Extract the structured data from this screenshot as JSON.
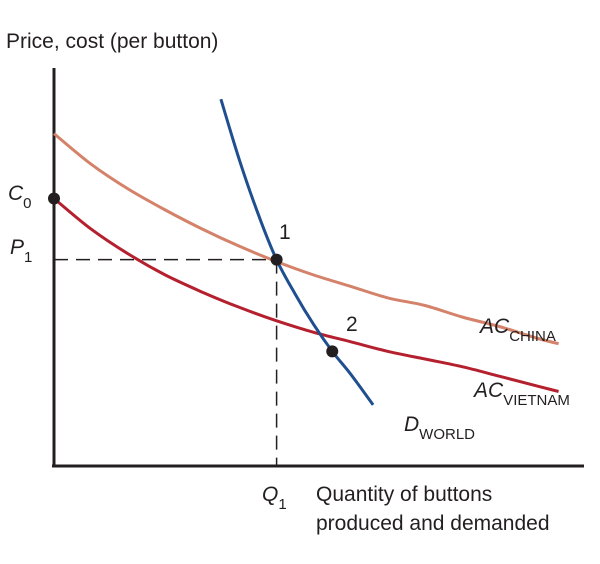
{
  "chart_data": {
    "type": "line",
    "title": "",
    "ylabel": "Price, cost (per button)",
    "xlabel_line1": "Quantity of buttons",
    "xlabel_line2": "produced and demanded",
    "series": [
      {
        "name": "AC_CHINA",
        "label_main": "AC",
        "label_sub": "CHINA",
        "color": "#d4826a",
        "points": [
          [
            0.0,
            0.87
          ],
          [
            0.1,
            0.79
          ],
          [
            0.2,
            0.725
          ],
          [
            0.3,
            0.67
          ],
          [
            0.4,
            0.62
          ],
          [
            0.5,
            0.575
          ],
          [
            0.6,
            0.535
          ],
          [
            0.7,
            0.5
          ],
          [
            0.8,
            0.47
          ],
          [
            0.9,
            0.44
          ],
          [
            1.0,
            0.42
          ],
          [
            1.1,
            0.39
          ],
          [
            1.2,
            0.365
          ],
          [
            1.3,
            0.335
          ],
          [
            1.36,
            0.32
          ]
        ]
      },
      {
        "name": "AC_VIETNAM",
        "label_main": "AC",
        "label_sub": "VIETNAM",
        "color": "#b5202e",
        "points": [
          [
            0.0,
            0.7
          ],
          [
            0.1,
            0.62
          ],
          [
            0.2,
            0.555
          ],
          [
            0.3,
            0.5
          ],
          [
            0.4,
            0.455
          ],
          [
            0.5,
            0.415
          ],
          [
            0.6,
            0.38
          ],
          [
            0.7,
            0.35
          ],
          [
            0.8,
            0.325
          ],
          [
            0.9,
            0.3
          ],
          [
            1.0,
            0.28
          ],
          [
            1.1,
            0.26
          ],
          [
            1.2,
            0.235
          ],
          [
            1.3,
            0.21
          ],
          [
            1.36,
            0.195
          ]
        ]
      },
      {
        "name": "D_WORLD",
        "label_main": "D",
        "label_sub": "WORLD",
        "color": "#1f4f8f",
        "points": [
          [
            0.45,
            0.96
          ],
          [
            0.5,
            0.8
          ],
          [
            0.55,
            0.66
          ],
          [
            0.6,
            0.54
          ],
          [
            0.65,
            0.45
          ],
          [
            0.7,
            0.37
          ],
          [
            0.75,
            0.3
          ],
          [
            0.8,
            0.24
          ],
          [
            0.86,
            0.16
          ]
        ]
      }
    ],
    "points": [
      {
        "label": "1",
        "x": 0.6,
        "y": 0.54
      },
      {
        "label": "2",
        "x": 0.75,
        "y": 0.3
      },
      {
        "label": "",
        "x": 0.0,
        "y": 0.7
      }
    ],
    "tick_labels": {
      "c0_main": "C",
      "c0_sub": "0",
      "p1_main": "P",
      "p1_sub": "1",
      "q1_main": "Q",
      "q1_sub": "1"
    },
    "xlim": [
      0,
      1.4
    ],
    "ylim": [
      0,
      1.0
    ],
    "grid": false
  }
}
